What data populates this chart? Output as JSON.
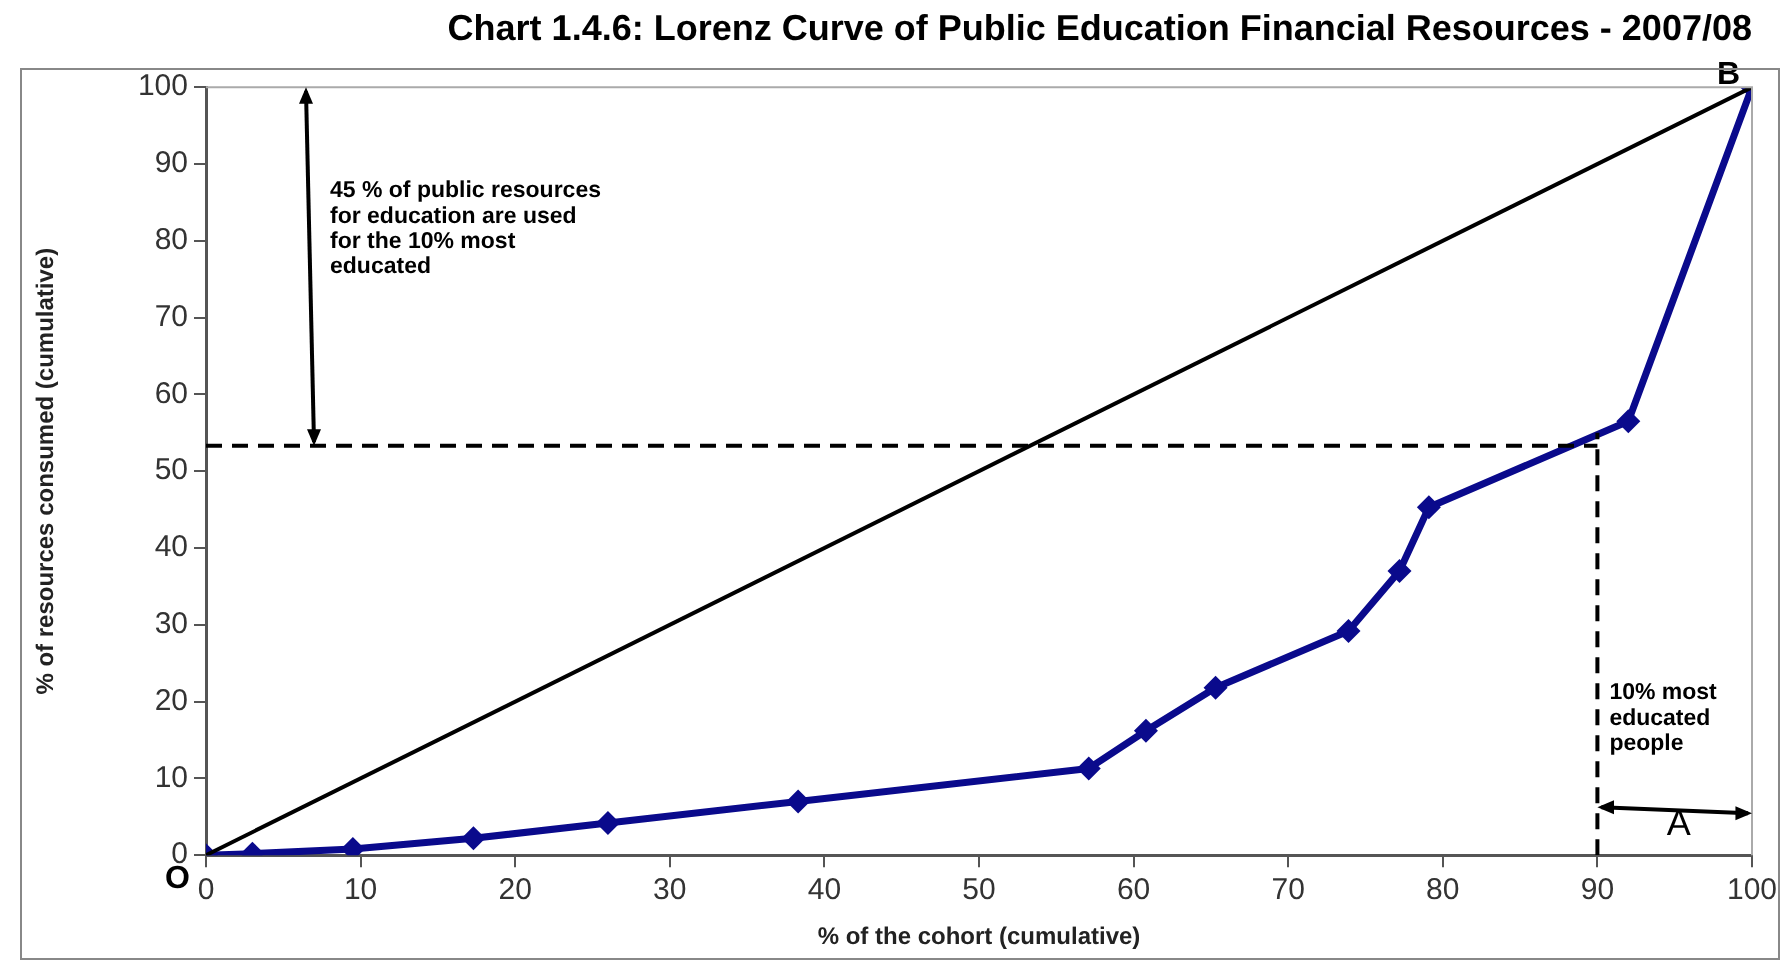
{
  "chart_data": {
    "type": "line",
    "title": "Chart 1.4.6: Lorenz Curve of Public Education Financial Resources - 2007/08",
    "xlabel": "% of the cohort (cumulative)",
    "ylabel": "% of resources consumed (cumulative)",
    "xlim": [
      0,
      100
    ],
    "xticks": [
      0,
      10,
      20,
      30,
      40,
      50,
      60,
      70,
      80,
      90,
      100
    ],
    "ylim": [
      0,
      100
    ],
    "yticks": [
      0,
      10,
      20,
      30,
      40,
      50,
      60,
      70,
      80,
      90,
      100
    ],
    "grid": false,
    "legend": false,
    "series": [
      {
        "color": "#000000",
        "x": [
          0,
          100
        ],
        "values": [
          0,
          100
        ],
        "marker": "none",
        "line_style": "solid"
      },
      {
        "color": "#000000",
        "x": [
          0,
          90
        ],
        "values": [
          53.3,
          53.3
        ],
        "marker": "none",
        "line_style": "dashed"
      },
      {
        "color": "#000000",
        "x": [
          90,
          90
        ],
        "values": [
          0,
          55
        ],
        "marker": "none",
        "line_style": "dashed"
      },
      {
        "color": "#0a0a8c",
        "x": [
          0,
          3,
          9.5,
          17.3,
          26,
          38.3,
          57.1,
          60.8,
          65.3,
          73.9,
          77.2,
          79.1,
          92,
          100
        ],
        "values": [
          0,
          0.2,
          0.8,
          2.2,
          4.2,
          7,
          11.3,
          16.2,
          21.8,
          29.2,
          37,
          45.3,
          56.5,
          100
        ],
        "marker": "diamond",
        "line_style": "solid"
      }
    ],
    "annotations": [
      "45 % of public resources for education are used for the 10% most educated",
      "10% most educated people",
      "A",
      {
        "text": "O",
        "x": 0,
        "y": 0
      },
      {
        "text": "B",
        "x": 100,
        "y": 100
      }
    ]
  }
}
